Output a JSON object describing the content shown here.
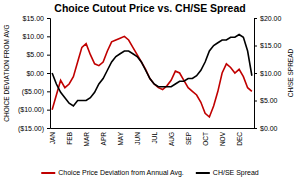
{
  "chart_data": {
    "type": "line",
    "title": "Choice Cutout Price vs. CH/SE Spread",
    "y_label": "CHOICE DEVIATION FROM AVG",
    "y2_label": "CH/SE SPREAD",
    "categories": [
      "JAN",
      null,
      null,
      null,
      "FEB",
      null,
      null,
      null,
      "MAR",
      null,
      null,
      null,
      "APR",
      null,
      null,
      null,
      "MAY",
      null,
      null,
      null,
      "JUN",
      null,
      null,
      null,
      "JUL",
      null,
      null,
      null,
      "AUG",
      null,
      null,
      null,
      "SEP",
      null,
      null,
      null,
      "OCT",
      null,
      null,
      null,
      "NOV",
      null,
      null,
      null,
      "DEC",
      null,
      null,
      null
    ],
    "series": [
      {
        "name": "Choice Price Deviation from Annual Avg.",
        "color": "#c00000",
        "values": [
          -10,
          -6,
          -2,
          -4,
          -3,
          -1,
          3,
          7,
          8,
          5,
          2.5,
          2,
          3,
          6,
          8.5,
          9,
          9.5,
          10,
          9,
          7,
          5,
          3,
          1,
          -1.5,
          -3,
          -4,
          -4.5,
          -3.5,
          -2,
          0.5,
          0,
          -2,
          -4,
          -5,
          -6,
          -8,
          -11,
          -12,
          -9,
          -5,
          0,
          2.5,
          1.5,
          0,
          1,
          -1,
          -4,
          -5
        ]
      },
      {
        "name": "CH/SE Spread",
        "color": "#000000",
        "axis": "y2",
        "values": [
          10,
          8,
          6.5,
          5.5,
          4.5,
          4,
          5,
          5,
          5,
          5.5,
          6.5,
          8,
          9,
          10.5,
          12,
          13,
          13.5,
          14,
          14,
          13.5,
          13,
          12,
          10.5,
          9,
          8,
          7.5,
          7.5,
          7.5,
          7.5,
          8,
          8.5,
          8.5,
          9,
          9,
          9.5,
          10.5,
          12,
          14,
          15,
          15.5,
          16,
          16,
          16.5,
          16.5,
          17,
          16.5,
          14,
          9.5
        ]
      }
    ],
    "ylim": [
      -15,
      15
    ],
    "yticks": [
      {
        "value": -15,
        "label": "($15.00)"
      },
      {
        "value": -10,
        "label": "($10.00)"
      },
      {
        "value": -5,
        "label": "($5.00)"
      },
      {
        "value": 0,
        "label": "$0.00"
      },
      {
        "value": 5,
        "label": "$5.00"
      },
      {
        "value": 10,
        "label": "$10.00"
      },
      {
        "value": 15,
        "label": "$15.00"
      }
    ],
    "y2lim": [
      0,
      20
    ],
    "y2ticks": [
      {
        "value": 0,
        "label": "$0.00"
      },
      {
        "value": 5,
        "label": "$5.00"
      },
      {
        "value": 10,
        "label": "$10.00"
      },
      {
        "value": 15,
        "label": "$15.00"
      },
      {
        "value": 20,
        "label": "$20.00"
      }
    ],
    "grid": false,
    "legend": "bottom"
  }
}
